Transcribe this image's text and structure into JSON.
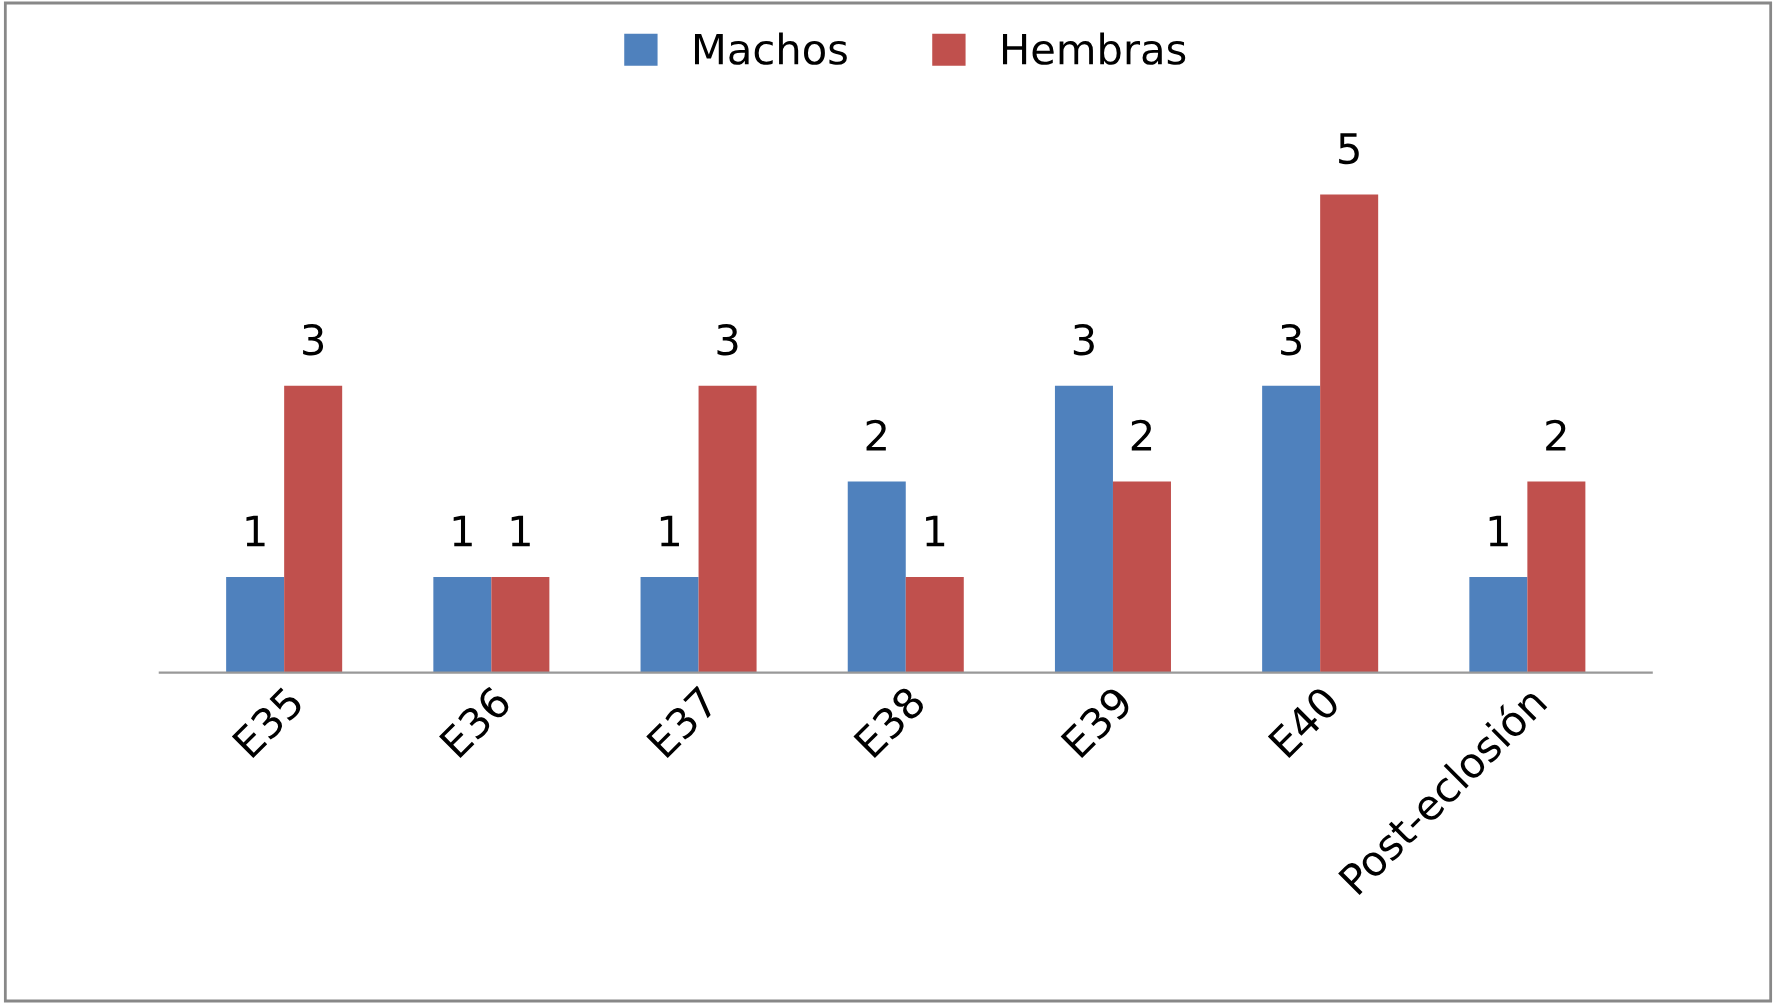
{
  "chart_data": {
    "type": "bar",
    "categories": [
      "E35",
      "E36",
      "E37",
      "E38",
      "E39",
      "E40",
      "Post-eclosión"
    ],
    "series": [
      {
        "name": "Machos",
        "color": "#4f81bd",
        "values": [
          1,
          1,
          1,
          2,
          3,
          3,
          1
        ]
      },
      {
        "name": "Hembras",
        "color": "#c0504d",
        "values": [
          3,
          1,
          3,
          1,
          2,
          5,
          2
        ]
      }
    ],
    "data_labels": true,
    "legend": "top",
    "grid": false
  }
}
